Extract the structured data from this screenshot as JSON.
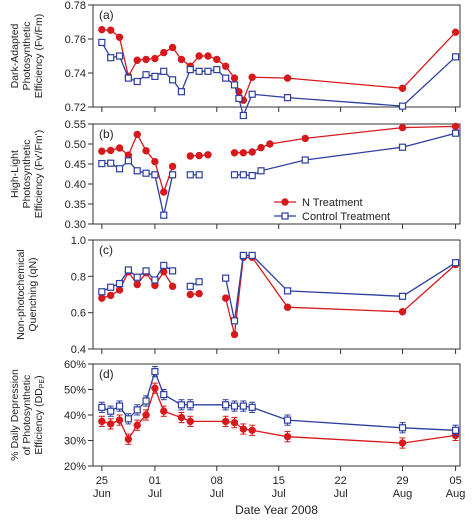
{
  "chart_data": [
    {
      "type": "line",
      "panel_label": "(a)",
      "ylabel": [
        "Dark-Adapted",
        "Photosynthetic",
        "Efficiency (Fv/Fm)"
      ],
      "ylim": [
        0.72,
        0.78
      ],
      "yticks": [
        0.72,
        0.74,
        0.76,
        0.78
      ],
      "ytick_labels": [
        "0.72",
        "0.74",
        "0.76",
        "0.78"
      ],
      "series": [
        {
          "name": "N Treatment",
          "segments": [
            [
              [
                0,
                0.7655
              ],
              [
                1,
                0.7652
              ],
              [
                2,
                0.761
              ],
              [
                3,
                0.738
              ],
              [
                4,
                0.7475
              ],
              [
                5,
                0.748
              ],
              [
                6,
                0.7485
              ],
              [
                7,
                0.752
              ],
              [
                8,
                0.755
              ],
              [
                9,
                0.748
              ],
              [
                10,
                0.744
              ],
              [
                11,
                0.75
              ],
              [
                12,
                0.75
              ],
              [
                13,
                0.748
              ],
              [
                14,
                0.744
              ],
              [
                15,
                0.737
              ],
              [
                15.5,
                0.729
              ],
              [
                16,
                0.724
              ],
              [
                17,
                0.7375
              ],
              [
                21,
                0.737
              ],
              [
                34,
                0.731
              ],
              [
                40,
                0.764
              ]
            ]
          ]
        },
        {
          "name": "Control Treatment",
          "segments": [
            [
              [
                0,
                0.758
              ],
              [
                1,
                0.749
              ],
              [
                2,
                0.75
              ],
              [
                3,
                0.737
              ],
              [
                4,
                0.735
              ],
              [
                5,
                0.739
              ],
              [
                6,
                0.738
              ],
              [
                7,
                0.741
              ],
              [
                8,
                0.736
              ],
              [
                9,
                0.729
              ],
              [
                10,
                0.742
              ],
              [
                11,
                0.741
              ],
              [
                12,
                0.741
              ],
              [
                13,
                0.742
              ],
              [
                14,
                0.737
              ],
              [
                15,
                0.733
              ],
              [
                15.5,
                0.725
              ],
              [
                16,
                0.715
              ],
              [
                17,
                0.7275
              ],
              [
                21,
                0.7255
              ],
              [
                34,
                0.7205
              ],
              [
                40,
                0.7495
              ]
            ]
          ]
        }
      ]
    },
    {
      "type": "line",
      "panel_label": "(b)",
      "ylabel": [
        "High-Light",
        "Photosynthetic",
        "Efficiency (Fv'/Fm')"
      ],
      "ylim": [
        0.3,
        0.55
      ],
      "yticks": [
        0.3,
        0.35,
        0.4,
        0.45,
        0.5,
        0.55
      ],
      "ytick_labels": [
        "0.30",
        "0.35",
        "0.40",
        "0.45",
        "0.50",
        "0.55"
      ],
      "series": [
        {
          "name": "N Treatment",
          "segments": [
            [
              [
                0,
                0.482
              ],
              [
                1,
                0.484
              ],
              [
                2,
                0.49
              ],
              [
                3,
                0.472
              ],
              [
                4,
                0.524
              ],
              [
                5,
                0.483
              ],
              [
                6,
                0.456
              ],
              [
                7,
                0.38
              ],
              [
                8,
                0.444
              ]
            ],
            [
              [
                10,
                0.47
              ],
              [
                11,
                0.471
              ],
              [
                12,
                0.473
              ]
            ],
            [
              [
                15,
                0.478
              ],
              [
                16,
                0.478
              ],
              [
                17,
                0.48
              ],
              [
                18,
                0.491
              ],
              [
                19,
                0.5
              ],
              [
                23,
                0.514
              ],
              [
                34,
                0.541
              ],
              [
                40,
                0.544
              ]
            ]
          ]
        },
        {
          "name": "Control Treatment",
          "segments": [
            [
              [
                0,
                0.451
              ],
              [
                1,
                0.452
              ],
              [
                2,
                0.438
              ],
              [
                3,
                0.458
              ],
              [
                4,
                0.433
              ],
              [
                5,
                0.427
              ],
              [
                6,
                0.423
              ],
              [
                7,
                0.322
              ],
              [
                8,
                0.423
              ]
            ],
            [
              [
                10,
                0.423
              ],
              [
                11,
                0.423
              ]
            ],
            [
              [
                15,
                0.423
              ],
              [
                16,
                0.423
              ],
              [
                17,
                0.421
              ],
              [
                18,
                0.433
              ],
              [
                23,
                0.46
              ],
              [
                34,
                0.492
              ],
              [
                40,
                0.527
              ]
            ]
          ]
        }
      ]
    },
    {
      "type": "line",
      "panel_label": "(c)",
      "ylabel": [
        "Non-photochemical",
        "Quenching (qN)"
      ],
      "ylim": [
        0.4,
        1.0
      ],
      "yticks": [
        0.4,
        0.6,
        0.8,
        1.0
      ],
      "ytick_labels": [
        "0.4",
        "0.6",
        "0.8",
        "1.0"
      ],
      "series": [
        {
          "name": "N Treatment",
          "segments": [
            [
              [
                0,
                0.68
              ],
              [
                1,
                0.695
              ],
              [
                2,
                0.725
              ],
              [
                3,
                0.825
              ],
              [
                4,
                0.755
              ],
              [
                5,
                0.82
              ],
              [
                6,
                0.75
              ],
              [
                7,
                0.825
              ],
              [
                8,
                0.745
              ]
            ],
            [
              [
                10,
                0.7
              ],
              [
                11,
                0.705
              ]
            ],
            [
              [
                14,
                0.68
              ],
              [
                15,
                0.48
              ],
              [
                16,
                0.905
              ],
              [
                17,
                0.905
              ],
              [
                21,
                0.63
              ],
              [
                34,
                0.605
              ],
              [
                40,
                0.865
              ]
            ]
          ]
        },
        {
          "name": "Control Treatment",
          "segments": [
            [
              [
                0,
                0.715
              ],
              [
                1,
                0.74
              ],
              [
                2,
                0.76
              ],
              [
                3,
                0.835
              ],
              [
                4,
                0.795
              ],
              [
                5,
                0.83
              ],
              [
                6,
                0.78
              ],
              [
                7,
                0.86
              ],
              [
                8,
                0.83
              ]
            ],
            [
              [
                10,
                0.745
              ],
              [
                11,
                0.77
              ]
            ],
            [
              [
                14,
                0.79
              ],
              [
                15,
                0.555
              ],
              [
                16,
                0.915
              ],
              [
                17,
                0.915
              ],
              [
                21,
                0.72
              ],
              [
                34,
                0.69
              ],
              [
                40,
                0.875
              ]
            ]
          ]
        }
      ]
    },
    {
      "type": "line",
      "panel_label": "(d)",
      "ylabel": [
        "% Daily Depression",
        "of Photosynthetic",
        "Efficiency (DD_PE)"
      ],
      "ylim": [
        20,
        60
      ],
      "yticks": [
        20,
        30,
        40,
        50,
        60
      ],
      "ytick_labels": [
        "20%",
        "30%",
        "40%",
        "50%",
        "60%"
      ],
      "series": [
        {
          "name": "N Treatment",
          "segments": [
            [
              [
                0,
                37.5
              ],
              [
                1,
                36.5
              ],
              [
                2,
                38.0
              ],
              [
                3,
                30.5
              ],
              [
                4,
                36.0
              ],
              [
                5,
                40.0
              ],
              [
                6,
                50.5
              ],
              [
                7,
                41.5
              ],
              [
                9,
                39.0
              ],
              [
                10,
                37.5
              ],
              [
                14,
                37.5
              ],
              [
                15,
                37.0
              ],
              [
                16,
                34.5
              ],
              [
                17,
                34.0
              ],
              [
                21,
                31.5
              ],
              [
                34,
                29.0
              ],
              [
                40,
                32.0
              ]
            ]
          ]
        },
        {
          "name": "Control Treatment",
          "segments": [
            [
              [
                0,
                43.0
              ],
              [
                1,
                41.5
              ],
              [
                2,
                43.5
              ],
              [
                3,
                38.5
              ],
              [
                4,
                42.0
              ],
              [
                5,
                45.5
              ],
              [
                6,
                57.0
              ],
              [
                7,
                48.0
              ],
              [
                9,
                44.0
              ],
              [
                10,
                44.0
              ],
              [
                14,
                44.0
              ],
              [
                15,
                43.5
              ],
              [
                16,
                43.5
              ],
              [
                17,
                43.0
              ],
              [
                21,
                38.0
              ],
              [
                34,
                35.0
              ],
              [
                40,
                34.0
              ]
            ]
          ]
        }
      ],
      "error_bar": 2
    }
  ],
  "x_axis": {
    "ticks": [
      0,
      6,
      13,
      20,
      27,
      34,
      40
    ],
    "tick_labels_top": [
      "25",
      "01",
      "08",
      "15",
      "22",
      "29",
      "05"
    ],
    "tick_labels_bottom": [
      "Jun",
      "Jul",
      "Jul",
      "Jul",
      "Jul",
      "Aug",
      "Aug"
    ],
    "xlabel": "Date Year 2008",
    "xlim": [
      -1,
      40.5
    ]
  },
  "legend": {
    "entries": [
      "N Treatment",
      "Control Treatment"
    ],
    "placement": "panel (b), lower right"
  },
  "colors": {
    "N Treatment": "#d7191c",
    "Control Treatment": "#2c3e9e"
  }
}
